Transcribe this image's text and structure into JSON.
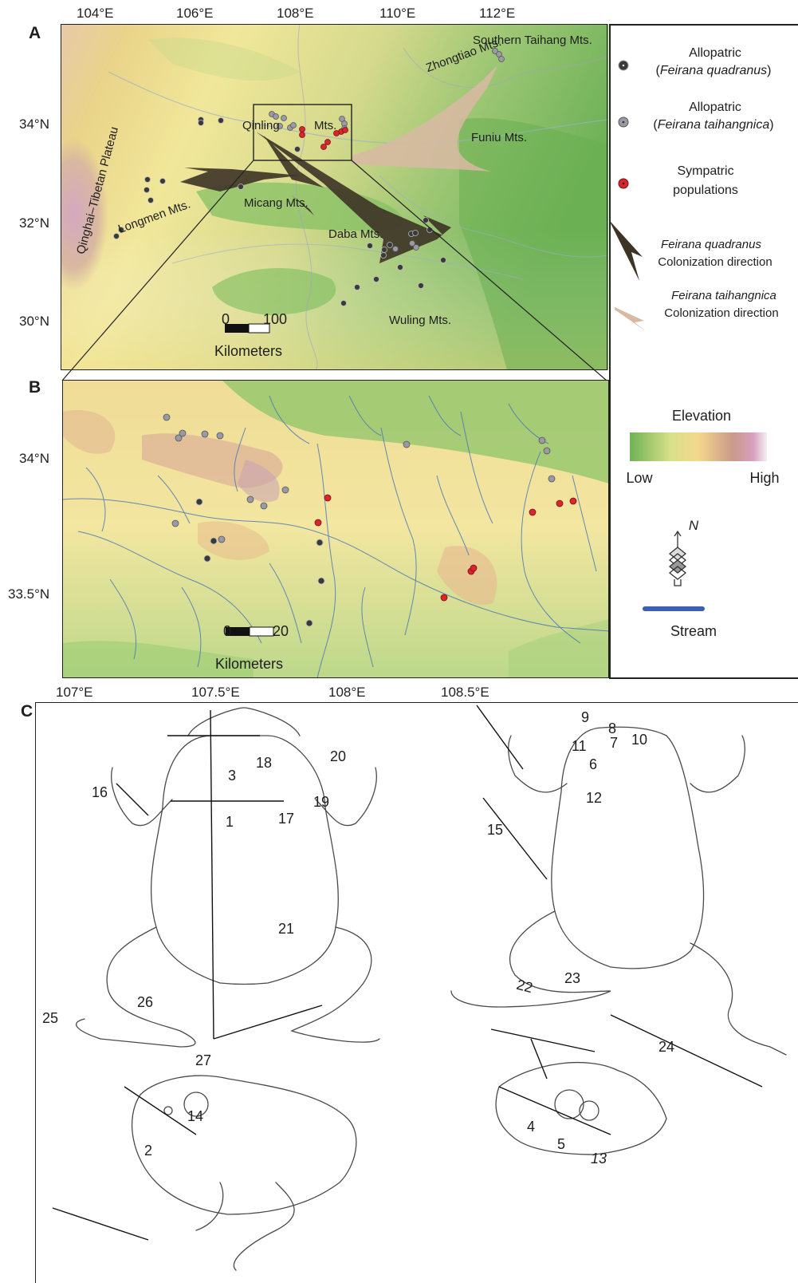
{
  "panels": {
    "a": "A",
    "b": "B",
    "c": "C"
  },
  "map_a": {
    "lon_ticks": [
      "104°E",
      "106°E",
      "108°E",
      "110°E",
      "112°E"
    ],
    "lat_ticks": [
      "34°N",
      "32°N",
      "30°N"
    ],
    "places": {
      "southern_taihang": "Southern Taihang Mts.",
      "zhongtiao": "Zhongtiao Mts.",
      "qinling": "Qinling",
      "qinling_mts": "Mts.",
      "funiu": "Funiu Mts.",
      "micang": "Micang Mts.",
      "longmen": "Longmen Mts.",
      "qinghai": "Qinghai–Tibetan Plateau",
      "daba": "Daba Mts.",
      "wuling": "Wuling Mts."
    },
    "scale": {
      "zero": "0",
      "max": "100",
      "unit": "Kilometers"
    }
  },
  "map_b": {
    "lon_ticks": [
      "107°E",
      "107.5°E",
      "108°E",
      "108.5°E"
    ],
    "lat_ticks": [
      "34°N",
      "33.5°N"
    ],
    "scale": {
      "zero": "0",
      "max": "20",
      "unit": "Kilometers"
    }
  },
  "legend": {
    "quadranus_1": "Allopatric",
    "quadranus_2a": "(",
    "quadranus_2b": "Feirana quadranus",
    "quadranus_2c": ")",
    "taihangnica_1": "Allopatric",
    "taihangnica_2a": "(",
    "taihangnica_2b": "Feirana taihangnica",
    "taihangnica_2c": ")",
    "sympatric_1": "Sympatric",
    "sympatric_2": "populations",
    "fq_col_1": "Feirana quadranus",
    "fq_col_2": "Colonization direction",
    "ft_col_1": "Feirana taihangnica",
    "ft_col_2": "Colonization direction",
    "elevation": "Elevation",
    "low": "Low",
    "high": "High",
    "north": "N",
    "stream": "Stream"
  },
  "colors": {
    "quadranus": "#3a3a3a",
    "taihangnica": "#9a9aa6",
    "sympatric": "#d8262c",
    "stream": "#3b5fb3",
    "arrow_fq": "#3d3326",
    "arrow_ft": "#d9b9a4"
  },
  "frog_numbers": [
    "1",
    "2",
    "3",
    "4",
    "5",
    "6",
    "7",
    "8",
    "9",
    "10",
    "11",
    "12",
    "13",
    "14",
    "15",
    "16",
    "17",
    "18",
    "19",
    "20",
    "21",
    "22",
    "23",
    "24",
    "25",
    "26",
    "27"
  ]
}
